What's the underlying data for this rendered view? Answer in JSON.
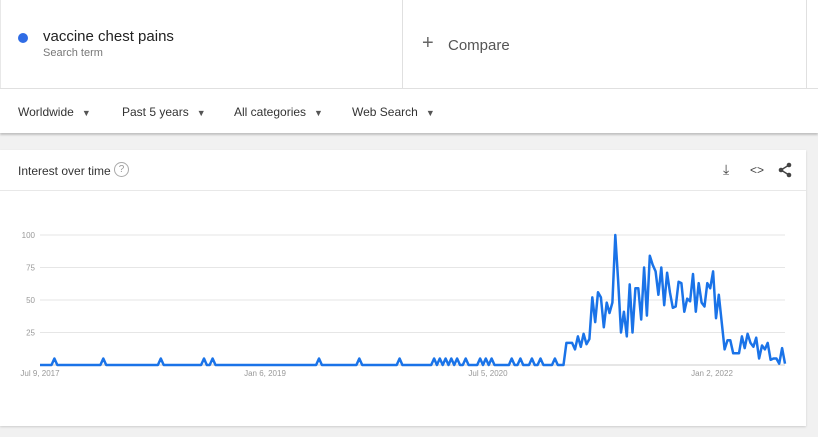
{
  "search": {
    "term": "vaccine chest pains",
    "term_sub": "Search term",
    "term_color": "#2f6ce5",
    "compare_label": "Compare",
    "compare_icon": "plus-icon"
  },
  "filters": [
    {
      "label": "Worldwide"
    },
    {
      "label": "Past 5 years"
    },
    {
      "label": "All categories"
    },
    {
      "label": "Web Search"
    }
  ],
  "card": {
    "title": "Interest over time",
    "help_icon": "question-icon",
    "actions": [
      "download-icon",
      "embed-icon",
      "share-icon"
    ]
  },
  "chart_data": {
    "type": "line",
    "title": "",
    "line_color": "#1a73e8",
    "ylim": [
      0,
      100
    ],
    "y_ticks": [
      "100",
      "75",
      "50",
      "25"
    ],
    "x_ticks": [
      "Jul 9, 2017",
      "Jan 6, 2019",
      "Jul 5, 2020",
      "Jan 2, 2022"
    ],
    "grid": true,
    "values": [
      0,
      0,
      0,
      0,
      0,
      5,
      0,
      0,
      0,
      0,
      0,
      0,
      0,
      0,
      0,
      0,
      0,
      0,
      0,
      0,
      0,
      0,
      5,
      0,
      0,
      0,
      0,
      0,
      0,
      0,
      0,
      0,
      0,
      0,
      0,
      0,
      0,
      0,
      0,
      0,
      0,
      0,
      5,
      0,
      0,
      0,
      0,
      0,
      0,
      0,
      0,
      0,
      0,
      0,
      0,
      0,
      0,
      5,
      0,
      0,
      5,
      0,
      0,
      0,
      0,
      0,
      0,
      0,
      0,
      0,
      0,
      0,
      0,
      0,
      0,
      0,
      0,
      0,
      0,
      0,
      0,
      0,
      0,
      0,
      0,
      0,
      0,
      0,
      0,
      0,
      0,
      0,
      0,
      0,
      0,
      0,
      0,
      5,
      0,
      0,
      0,
      0,
      0,
      0,
      0,
      0,
      0,
      0,
      0,
      0,
      0,
      5,
      0,
      0,
      0,
      0,
      0,
      0,
      0,
      0,
      0,
      0,
      0,
      0,
      0,
      5,
      0,
      0,
      0,
      0,
      0,
      0,
      0,
      0,
      0,
      0,
      0,
      5,
      0,
      5,
      0,
      5,
      0,
      5,
      0,
      5,
      0,
      0,
      5,
      0,
      0,
      0,
      0,
      5,
      0,
      5,
      0,
      5,
      0,
      0,
      0,
      0,
      0,
      0,
      5,
      0,
      0,
      5,
      0,
      0,
      0,
      5,
      0,
      0,
      5,
      0,
      0,
      0,
      0,
      5,
      0,
      0,
      0,
      17,
      17,
      17,
      12,
      22,
      14,
      24,
      16,
      20,
      52,
      33,
      56,
      52,
      29,
      48,
      40,
      48,
      100,
      64,
      25,
      41,
      22,
      62,
      25,
      59,
      59,
      35,
      75,
      38,
      84,
      77,
      72,
      54,
      75,
      46,
      71,
      56,
      44,
      45,
      64,
      63,
      41,
      51,
      49,
      70,
      41,
      63,
      48,
      45,
      63,
      59,
      72,
      36,
      54,
      33,
      12,
      19,
      19,
      9,
      9,
      9,
      22,
      13,
      24,
      17,
      14,
      21,
      5,
      15,
      12,
      17,
      4,
      5,
      5,
      1,
      13,
      1
    ]
  }
}
